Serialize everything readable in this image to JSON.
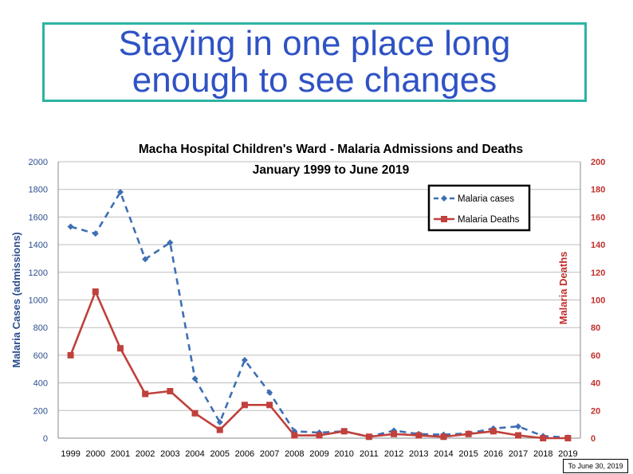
{
  "slide": {
    "title": "Staying in one place long\nenough to see changes",
    "footnote": "To June 30, 2019"
  },
  "colors": {
    "title": "#2f52c4",
    "title_border": "#2bb3a3",
    "cases": "#3f6fb3",
    "deaths": "#c0403c",
    "left_axis": "#2c4e8e",
    "right_axis": "#c0302c"
  },
  "chart_data": {
    "type": "line",
    "title": "Macha Hospital Children's Ward - Malaria Admissions and Deaths",
    "subtitle": "January 1999 to June 2019",
    "ylabel": "Malaria  Cases (admissions)",
    "y2label": "Malaria  Deaths",
    "ylim": [
      0,
      2000
    ],
    "y2lim": [
      0,
      200
    ],
    "yticks": [
      0,
      200,
      400,
      600,
      800,
      1000,
      1200,
      1400,
      1600,
      1800,
      2000
    ],
    "y2ticks": [
      0,
      20,
      40,
      60,
      80,
      100,
      120,
      140,
      160,
      180,
      200
    ],
    "grid": true,
    "legend_position": "top-right",
    "categories": [
      "1999",
      "2000",
      "2001",
      "2002",
      "2003",
      "2004",
      "2005",
      "2006",
      "2007",
      "2008",
      "2009",
      "2010",
      "2011",
      "2012",
      "2013",
      "2014",
      "2015",
      "2016",
      "2017",
      "2018",
      "2019"
    ],
    "series": [
      {
        "name": "Malaria cases",
        "axis": "left",
        "style": "dashed",
        "marker": "diamond",
        "values": [
          1530,
          1480,
          1780,
          1295,
          1415,
          430,
          115,
          565,
          330,
          50,
          40,
          50,
          10,
          55,
          30,
          25,
          35,
          70,
          85,
          15,
          5
        ]
      },
      {
        "name": "Malaria Deaths",
        "axis": "right",
        "style": "solid",
        "marker": "square",
        "values": [
          60,
          106,
          65,
          32,
          34,
          18,
          6,
          24,
          24,
          2,
          2,
          5,
          1,
          3,
          2,
          1,
          3,
          5,
          2,
          0,
          0
        ]
      }
    ]
  }
}
